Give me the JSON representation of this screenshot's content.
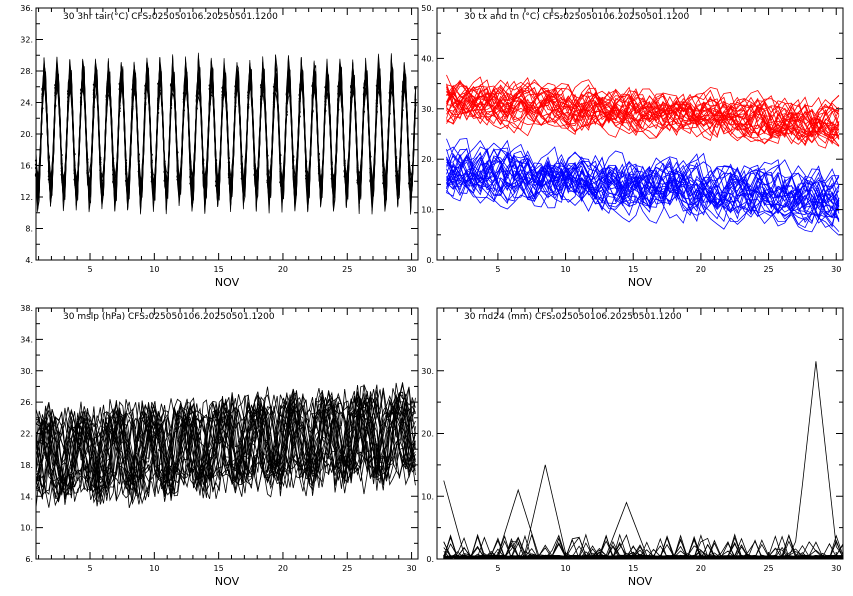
{
  "chart_data": [
    {
      "type": "line",
      "title": "30 3hr tair(°C) CFS₂025050106.20250501.1200",
      "xlabel": "NOV",
      "xlim": [
        0.8,
        30.5
      ],
      "ylim": [
        4,
        36
      ],
      "xticks": [
        5,
        10,
        15,
        20,
        25,
        30
      ],
      "yticks": [
        4,
        8,
        12,
        16,
        20,
        24,
        28,
        32,
        36
      ],
      "ytick_labels": [
        "4.",
        "8.",
        "12.",
        "16.",
        "20.",
        "24.",
        "28.",
        "32.",
        "36."
      ],
      "grid": false,
      "series_count": 30,
      "series_color": "#000000",
      "markers": true,
      "description_values": {
        "daily_max_range": [
          26,
          34
        ],
        "daily_min_range": [
          6,
          14
        ],
        "mean": 20
      }
    },
    {
      "type": "line",
      "title": "30 tx and tn (°C) CFS₂025050106.20250501.1200",
      "xlabel": "NOV",
      "xlim": [
        0.5,
        30.5
      ],
      "ylim": [
        0,
        50
      ],
      "xticks": [
        5,
        10,
        15,
        20,
        25,
        30
      ],
      "yticks": [
        0,
        10,
        20,
        30,
        40,
        50
      ],
      "ytick_labels": [
        "0.",
        "10.",
        "20.",
        "30.",
        "40.",
        "50."
      ],
      "grid": false,
      "series": [
        {
          "color": "#ff0000",
          "count": 30,
          "start_mean": 32,
          "end_mean": 27,
          "spread": 4
        },
        {
          "color": "#0000ff",
          "count": 30,
          "start_mean": 18,
          "end_mean": 12,
          "spread": 5
        }
      ]
    },
    {
      "type": "line",
      "title": "30 mslp (hPa) CFS₂025050106.20250501.1200",
      "xlabel": "NOV",
      "xlim": [
        0.8,
        30.5
      ],
      "ylim": [
        6,
        38
      ],
      "xticks": [
        5,
        10,
        15,
        20,
        25,
        30
      ],
      "yticks": [
        6,
        10,
        14,
        18,
        22,
        26,
        30,
        34,
        38
      ],
      "ytick_labels": [
        "6.",
        "10.",
        "14.",
        "18.",
        "22.",
        "26.",
        "30.",
        "34.",
        "38."
      ],
      "grid": false,
      "series_count": 30,
      "series_color": "#000000",
      "description_values": {
        "start_mean": 19,
        "end_mean": 22,
        "spread": 5
      }
    },
    {
      "type": "line",
      "title": "30 rnd24 (mm) CFS₂025050106.20250501.1200",
      "xlabel": "NOV",
      "xlim": [
        0.5,
        30.5
      ],
      "ylim": [
        0,
        40
      ],
      "xticks": [
        5,
        10,
        15,
        20,
        25,
        30
      ],
      "yticks": [
        0,
        10,
        20,
        30,
        40
      ],
      "ytick_labels": [
        "0.",
        "10.",
        "20.",
        "30.",
        ""
      ],
      "grid": false,
      "series_color": "#000000",
      "highlight_peaks": [
        {
          "x": 28.5,
          "y": 31.5
        },
        {
          "x": 8.5,
          "y": 15
        },
        {
          "x": 1,
          "y": 12.5
        },
        {
          "x": 6.5,
          "y": 11
        },
        {
          "x": 14.5,
          "y": 9
        }
      ]
    }
  ]
}
